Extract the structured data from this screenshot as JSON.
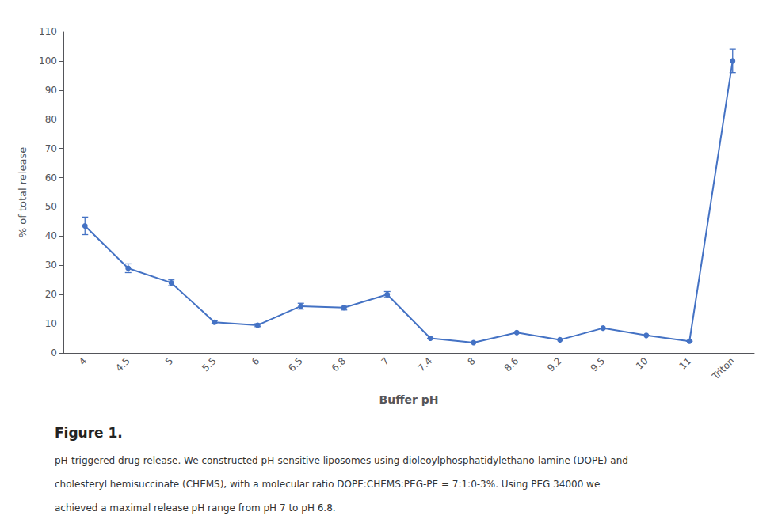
{
  "chart_data": {
    "type": "line",
    "xlabel": "Buffer pH",
    "ylabel": "% of total release",
    "categories": [
      "4",
      "4.5",
      "5",
      "5.5",
      "6",
      "6.5",
      "6.8",
      "7",
      "7.4",
      "8",
      "8.6",
      "9.2",
      "9.5",
      "10",
      "11",
      "Triton"
    ],
    "values": [
      43.5,
      29.0,
      24.0,
      10.5,
      9.5,
      16.0,
      15.5,
      20.0,
      5.0,
      3.5,
      7.0,
      4.5,
      8.5,
      6.0,
      4.0,
      100.0
    ],
    "errors": [
      3.0,
      1.5,
      1.0,
      0.5,
      0.5,
      1.0,
      0.8,
      1.0,
      0.0,
      0.0,
      0.0,
      0.0,
      0.0,
      0.0,
      0.0,
      4.0
    ],
    "color": "#4472C4",
    "marker": "circle",
    "ylim": [
      0,
      110
    ],
    "yticks": [
      0,
      10,
      20,
      30,
      40,
      50,
      60,
      70,
      80,
      90,
      100,
      110
    ],
    "grid": false,
    "annotations": [
      "Figure 1.",
      "pH-triggered drug release. We constructed pH-sensitive liposomes using dioleoylphosphatidylethano-lamine (DOPE) and",
      "cholesteryl hemisuccinate (CHEMS), with a molecular ratio DOPE:CHEMS:PEG-PE = 7:1:0-3%. Using PEG 34000 we",
      "achieved a maximal release pH range from pH 7 to pH 6.8."
    ]
  }
}
